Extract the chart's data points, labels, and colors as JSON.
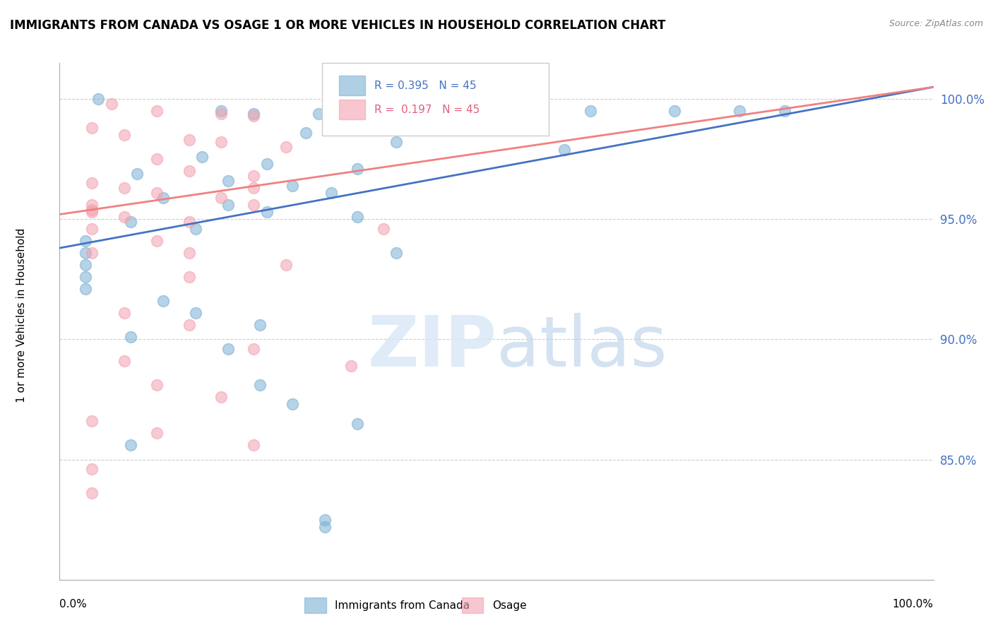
{
  "title": "IMMIGRANTS FROM CANADA VS OSAGE 1 OR MORE VEHICLES IN HOUSEHOLD CORRELATION CHART",
  "source": "Source: ZipAtlas.com",
  "ylabel": "1 or more Vehicles in Household",
  "legend_blue_label": "Immigrants from Canada",
  "legend_pink_label": "Osage",
  "blue_R": "0.395",
  "blue_N": "45",
  "pink_R": "0.197",
  "pink_N": "45",
  "blue_color": "#7BAFD4",
  "pink_color": "#F4A0B0",
  "blue_line_color": "#4472C4",
  "pink_line_color": "#F08080",
  "blue_scatter": [
    [
      0.6,
      100.0
    ],
    [
      2.5,
      99.5
    ],
    [
      3.0,
      99.4
    ],
    [
      4.0,
      99.4
    ],
    [
      5.5,
      99.5
    ],
    [
      6.0,
      99.5
    ],
    [
      6.5,
      99.5
    ],
    [
      7.2,
      99.5
    ],
    [
      8.2,
      99.5
    ],
    [
      9.5,
      99.5
    ],
    [
      10.5,
      99.5
    ],
    [
      11.2,
      99.5
    ],
    [
      3.8,
      98.6
    ],
    [
      5.2,
      98.2
    ],
    [
      7.8,
      97.9
    ],
    [
      2.2,
      97.6
    ],
    [
      3.2,
      97.3
    ],
    [
      4.6,
      97.1
    ],
    [
      1.2,
      96.9
    ],
    [
      2.6,
      96.6
    ],
    [
      3.6,
      96.4
    ],
    [
      4.2,
      96.1
    ],
    [
      1.6,
      95.9
    ],
    [
      2.6,
      95.6
    ],
    [
      3.2,
      95.3
    ],
    [
      4.6,
      95.1
    ],
    [
      1.1,
      94.9
    ],
    [
      2.1,
      94.6
    ],
    [
      0.4,
      94.1
    ],
    [
      0.4,
      93.6
    ],
    [
      0.4,
      93.1
    ],
    [
      0.4,
      92.6
    ],
    [
      0.4,
      92.1
    ],
    [
      1.6,
      91.6
    ],
    [
      2.1,
      91.1
    ],
    [
      3.1,
      90.6
    ],
    [
      5.2,
      93.6
    ],
    [
      1.1,
      90.1
    ],
    [
      2.6,
      89.6
    ],
    [
      4.6,
      86.5
    ],
    [
      1.1,
      85.6
    ],
    [
      3.1,
      88.1
    ],
    [
      3.6,
      87.3
    ],
    [
      4.1,
      82.2
    ],
    [
      4.1,
      82.5
    ]
  ],
  "pink_scatter": [
    [
      0.8,
      99.8
    ],
    [
      1.5,
      99.5
    ],
    [
      2.5,
      99.4
    ],
    [
      3.0,
      99.3
    ],
    [
      4.5,
      99.3
    ],
    [
      5.0,
      99.5
    ],
    [
      5.5,
      99.4
    ],
    [
      0.5,
      98.8
    ],
    [
      1.0,
      98.5
    ],
    [
      2.0,
      98.3
    ],
    [
      2.5,
      98.2
    ],
    [
      3.5,
      98.0
    ],
    [
      1.5,
      97.5
    ],
    [
      2.0,
      97.0
    ],
    [
      3.0,
      96.8
    ],
    [
      0.5,
      96.5
    ],
    [
      1.0,
      96.3
    ],
    [
      1.5,
      96.1
    ],
    [
      2.5,
      95.9
    ],
    [
      3.0,
      95.6
    ],
    [
      0.5,
      95.4
    ],
    [
      1.0,
      95.1
    ],
    [
      2.0,
      94.9
    ],
    [
      3.0,
      96.3
    ],
    [
      1.5,
      94.1
    ],
    [
      0.5,
      93.6
    ],
    [
      2.0,
      92.6
    ],
    [
      3.5,
      93.1
    ],
    [
      5.0,
      94.6
    ],
    [
      1.0,
      91.1
    ],
    [
      2.0,
      90.6
    ],
    [
      3.0,
      89.6
    ],
    [
      4.5,
      88.9
    ],
    [
      1.5,
      88.1
    ],
    [
      2.5,
      87.6
    ],
    [
      0.5,
      86.6
    ],
    [
      1.5,
      86.1
    ],
    [
      3.0,
      85.6
    ],
    [
      0.5,
      84.6
    ],
    [
      0.5,
      83.6
    ],
    [
      0.5,
      95.6
    ],
    [
      0.5,
      95.3
    ],
    [
      0.5,
      94.6
    ],
    [
      2.0,
      93.6
    ],
    [
      1.0,
      89.1
    ]
  ],
  "xmin": 0.0,
  "xmax": 13.5,
  "ymin": 80.0,
  "ymax": 101.5,
  "ytick_values": [
    85.0,
    90.0,
    95.0,
    100.0
  ],
  "blue_line_x0": 0.0,
  "blue_line_x1": 13.5,
  "blue_line_y0": 93.8,
  "blue_line_y1": 100.5,
  "pink_line_x0": 0.0,
  "pink_line_x1": 13.5,
  "pink_line_y0": 95.2,
  "pink_line_y1": 100.5
}
